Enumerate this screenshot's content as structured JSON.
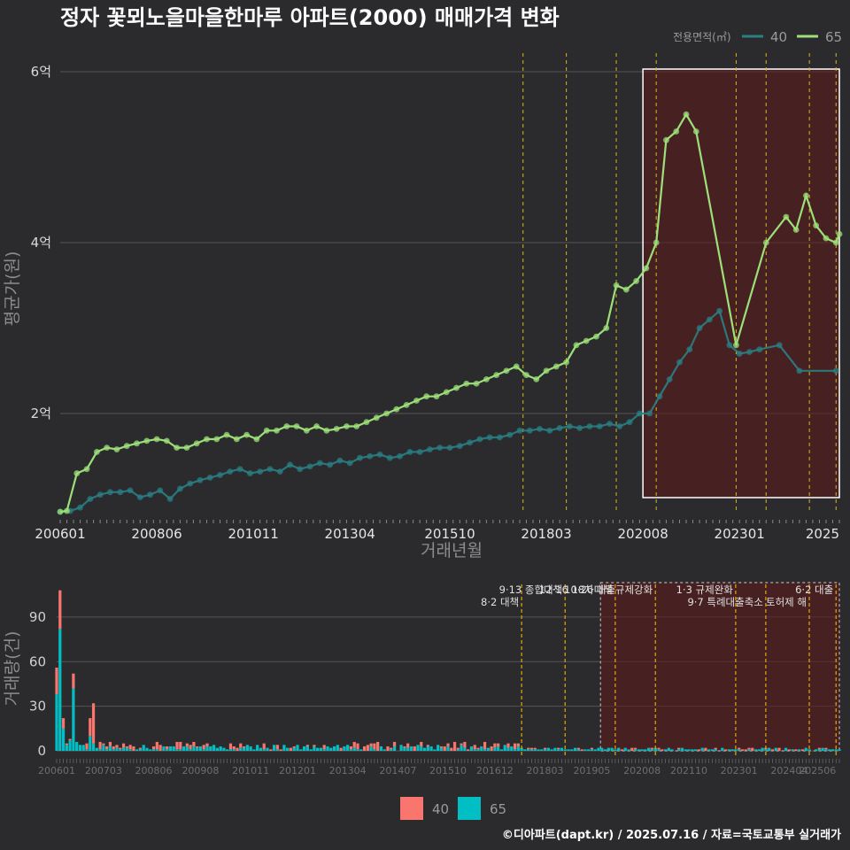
{
  "chart_data": [
    {
      "type": "line",
      "title": "정자 꽃뫼노을마을한마루 아파트(2000) 매매가격 변화",
      "xlabel": "거래년월",
      "ylabel": "평균가(원)",
      "x_ticks": [
        "200601",
        "200806",
        "201011",
        "201304",
        "201510",
        "201803",
        "202008",
        "202301",
        "2025"
      ],
      "y_ticks": [
        {
          "value": 2,
          "label": "2억"
        },
        {
          "value": 4,
          "label": "4억"
        },
        {
          "value": 6,
          "label": "6억"
        }
      ],
      "ylim": [
        0.85,
        6.3
      ],
      "legend_title": "전용면적(㎡)",
      "legend_position": "top-right",
      "highlight_range": [
        "2020-08",
        "2025-07"
      ],
      "policy_dates": [
        "2017-08",
        "2018-09",
        "2019-12",
        "2020-12",
        "2022-12",
        "2023-09",
        "2024-10",
        "2025-06"
      ],
      "series": [
        {
          "name": "40",
          "color": "#2a7f84",
          "points": [
            [
              "2006-01",
              0.85
            ],
            [
              "2006-04",
              0.86
            ],
            [
              "2006-07",
              0.9
            ],
            [
              "2006-10",
              1.0
            ],
            [
              "2007-01",
              1.05
            ],
            [
              "2007-04",
              1.08
            ],
            [
              "2007-07",
              1.08
            ],
            [
              "2007-10",
              1.1
            ],
            [
              "2008-01",
              1.02
            ],
            [
              "2008-04",
              1.05
            ],
            [
              "2008-07",
              1.1
            ],
            [
              "2008-10",
              1.0
            ],
            [
              "2009-01",
              1.12
            ],
            [
              "2009-04",
              1.18
            ],
            [
              "2009-07",
              1.22
            ],
            [
              "2009-10",
              1.25
            ],
            [
              "2010-01",
              1.28
            ],
            [
              "2010-04",
              1.32
            ],
            [
              "2010-07",
              1.35
            ],
            [
              "2010-10",
              1.3
            ],
            [
              "2011-01",
              1.32
            ],
            [
              "2011-04",
              1.35
            ],
            [
              "2011-07",
              1.32
            ],
            [
              "2011-10",
              1.4
            ],
            [
              "2012-01",
              1.35
            ],
            [
              "2012-04",
              1.38
            ],
            [
              "2012-07",
              1.42
            ],
            [
              "2012-10",
              1.4
            ],
            [
              "2013-01",
              1.45
            ],
            [
              "2013-04",
              1.42
            ],
            [
              "2013-07",
              1.48
            ],
            [
              "2013-10",
              1.5
            ],
            [
              "2014-01",
              1.52
            ],
            [
              "2014-04",
              1.48
            ],
            [
              "2014-07",
              1.5
            ],
            [
              "2014-10",
              1.55
            ],
            [
              "2015-01",
              1.55
            ],
            [
              "2015-04",
              1.58
            ],
            [
              "2015-07",
              1.6
            ],
            [
              "2015-10",
              1.6
            ],
            [
              "2016-01",
              1.62
            ],
            [
              "2016-04",
              1.66
            ],
            [
              "2016-07",
              1.7
            ],
            [
              "2016-10",
              1.72
            ],
            [
              "2017-01",
              1.72
            ],
            [
              "2017-04",
              1.75
            ],
            [
              "2017-07",
              1.8
            ],
            [
              "2017-10",
              1.8
            ],
            [
              "2018-01",
              1.82
            ],
            [
              "2018-04",
              1.8
            ],
            [
              "2018-07",
              1.83
            ],
            [
              "2018-10",
              1.85
            ],
            [
              "2019-01",
              1.83
            ],
            [
              "2019-04",
              1.85
            ],
            [
              "2019-07",
              1.85
            ],
            [
              "2019-10",
              1.88
            ],
            [
              "2020-01",
              1.85
            ],
            [
              "2020-04",
              1.9
            ],
            [
              "2020-07",
              2.0
            ],
            [
              "2020-10",
              2.0
            ],
            [
              "2021-01",
              2.2
            ],
            [
              "2021-04",
              2.4
            ],
            [
              "2021-07",
              2.6
            ],
            [
              "2021-10",
              2.75
            ],
            [
              "2022-01",
              3.0
            ],
            [
              "2022-04",
              3.1
            ],
            [
              "2022-07",
              3.2
            ],
            [
              "2022-10",
              2.8
            ],
            [
              "2023-01",
              2.7
            ],
            [
              "2023-04",
              2.72
            ],
            [
              "2023-07",
              2.75
            ],
            [
              "2024-01",
              2.8
            ],
            [
              "2024-07",
              2.5
            ],
            [
              "2025-06",
              2.5
            ]
          ]
        },
        {
          "name": "65",
          "color": "#9de07a",
          "points": [
            [
              "2006-01",
              0.85
            ],
            [
              "2006-03",
              0.86
            ],
            [
              "2006-06",
              1.3
            ],
            [
              "2006-09",
              1.35
            ],
            [
              "2006-12",
              1.55
            ],
            [
              "2007-03",
              1.6
            ],
            [
              "2007-06",
              1.58
            ],
            [
              "2007-09",
              1.62
            ],
            [
              "2007-12",
              1.65
            ],
            [
              "2008-03",
              1.68
            ],
            [
              "2008-06",
              1.7
            ],
            [
              "2008-09",
              1.68
            ],
            [
              "2008-12",
              1.6
            ],
            [
              "2009-03",
              1.6
            ],
            [
              "2009-06",
              1.65
            ],
            [
              "2009-09",
              1.7
            ],
            [
              "2009-12",
              1.7
            ],
            [
              "2010-03",
              1.75
            ],
            [
              "2010-06",
              1.7
            ],
            [
              "2010-09",
              1.75
            ],
            [
              "2010-12",
              1.7
            ],
            [
              "2011-03",
              1.8
            ],
            [
              "2011-06",
              1.8
            ],
            [
              "2011-09",
              1.85
            ],
            [
              "2011-12",
              1.85
            ],
            [
              "2012-03",
              1.8
            ],
            [
              "2012-06",
              1.85
            ],
            [
              "2012-09",
              1.8
            ],
            [
              "2012-12",
              1.82
            ],
            [
              "2013-03",
              1.85
            ],
            [
              "2013-06",
              1.85
            ],
            [
              "2013-09",
              1.9
            ],
            [
              "2013-12",
              1.95
            ],
            [
              "2014-03",
              2.0
            ],
            [
              "2014-06",
              2.05
            ],
            [
              "2014-09",
              2.1
            ],
            [
              "2014-12",
              2.15
            ],
            [
              "2015-03",
              2.2
            ],
            [
              "2015-06",
              2.2
            ],
            [
              "2015-09",
              2.25
            ],
            [
              "2015-12",
              2.3
            ],
            [
              "2016-03",
              2.35
            ],
            [
              "2016-06",
              2.35
            ],
            [
              "2016-09",
              2.4
            ],
            [
              "2016-12",
              2.45
            ],
            [
              "2017-03",
              2.5
            ],
            [
              "2017-06",
              2.55
            ],
            [
              "2017-09",
              2.45
            ],
            [
              "2017-12",
              2.4
            ],
            [
              "2018-03",
              2.5
            ],
            [
              "2018-06",
              2.55
            ],
            [
              "2018-09",
              2.6
            ],
            [
              "2018-12",
              2.8
            ],
            [
              "2019-03",
              2.85
            ],
            [
              "2019-06",
              2.9
            ],
            [
              "2019-09",
              3.0
            ],
            [
              "2019-12",
              3.5
            ],
            [
              "2020-03",
              3.45
            ],
            [
              "2020-06",
              3.55
            ],
            [
              "2020-09",
              3.7
            ],
            [
              "2020-12",
              4.0
            ],
            [
              "2021-03",
              5.2
            ],
            [
              "2021-06",
              5.3
            ],
            [
              "2021-09",
              5.5
            ],
            [
              "2021-12",
              5.3
            ],
            [
              "2022-12",
              2.8
            ],
            [
              "2023-09",
              4.0
            ],
            [
              "2024-03",
              4.3
            ],
            [
              "2024-06",
              4.15
            ],
            [
              "2024-09",
              4.55
            ],
            [
              "2024-12",
              4.2
            ],
            [
              "2025-03",
              4.05
            ],
            [
              "2025-06",
              4.0
            ],
            [
              "2025-07",
              4.1
            ]
          ]
        }
      ]
    },
    {
      "type": "bar",
      "ylabel": "거래량(건)",
      "y_ticks": [
        0,
        30,
        60,
        90
      ],
      "ylim": [
        0,
        112
      ],
      "x_ticks": [
        "200601",
        "200703",
        "200806",
        "200908",
        "201011",
        "201201",
        "201304",
        "201407",
        "201510",
        "201612",
        "201803",
        "201905",
        "202008",
        "202110",
        "202301",
        "202404",
        "202506"
      ],
      "series_names": [
        "40",
        "65"
      ],
      "series_colors": [
        "#f8766d",
        "#00bfc4"
      ],
      "volume_summary": [
        {
          "month": "2006-01",
          "40": 56,
          "65": 38
        },
        {
          "month": "2006-02",
          "40": 108,
          "65": 82
        },
        {
          "month": "2006-03",
          "40": 22,
          "65": 15
        },
        {
          "month": "2006-05",
          "40": 8,
          "65": 7
        },
        {
          "month": "2006-06",
          "40": 52,
          "65": 42
        },
        {
          "month": "2006-11",
          "40": 22,
          "65": 10
        },
        {
          "month": "2006-12",
          "40": 32,
          "65": 5
        }
      ],
      "policies": [
        {
          "date": "2017-08",
          "label": "8·2 대책"
        },
        {
          "date": "2018-09",
          "label": "9·13 종합대책"
        },
        {
          "date": "2019-12",
          "label": "12·16 18차대책"
        },
        {
          "date": "2020-12",
          "label": "10·26 대출규제강화"
        },
        {
          "date": "2022-12",
          "label": "1·3 규제완화"
        },
        {
          "date": "2023-09",
          "label": "9·7 특례대출축소"
        },
        {
          "date": "2024-10",
          "label": "토허제 해"
        },
        {
          "date": "2025-06",
          "label": "6·2 대출"
        }
      ]
    }
  ],
  "caption": "©디아파트(dapt.kr) / 2025.07.16 / 자료=국토교통부 실거래가"
}
